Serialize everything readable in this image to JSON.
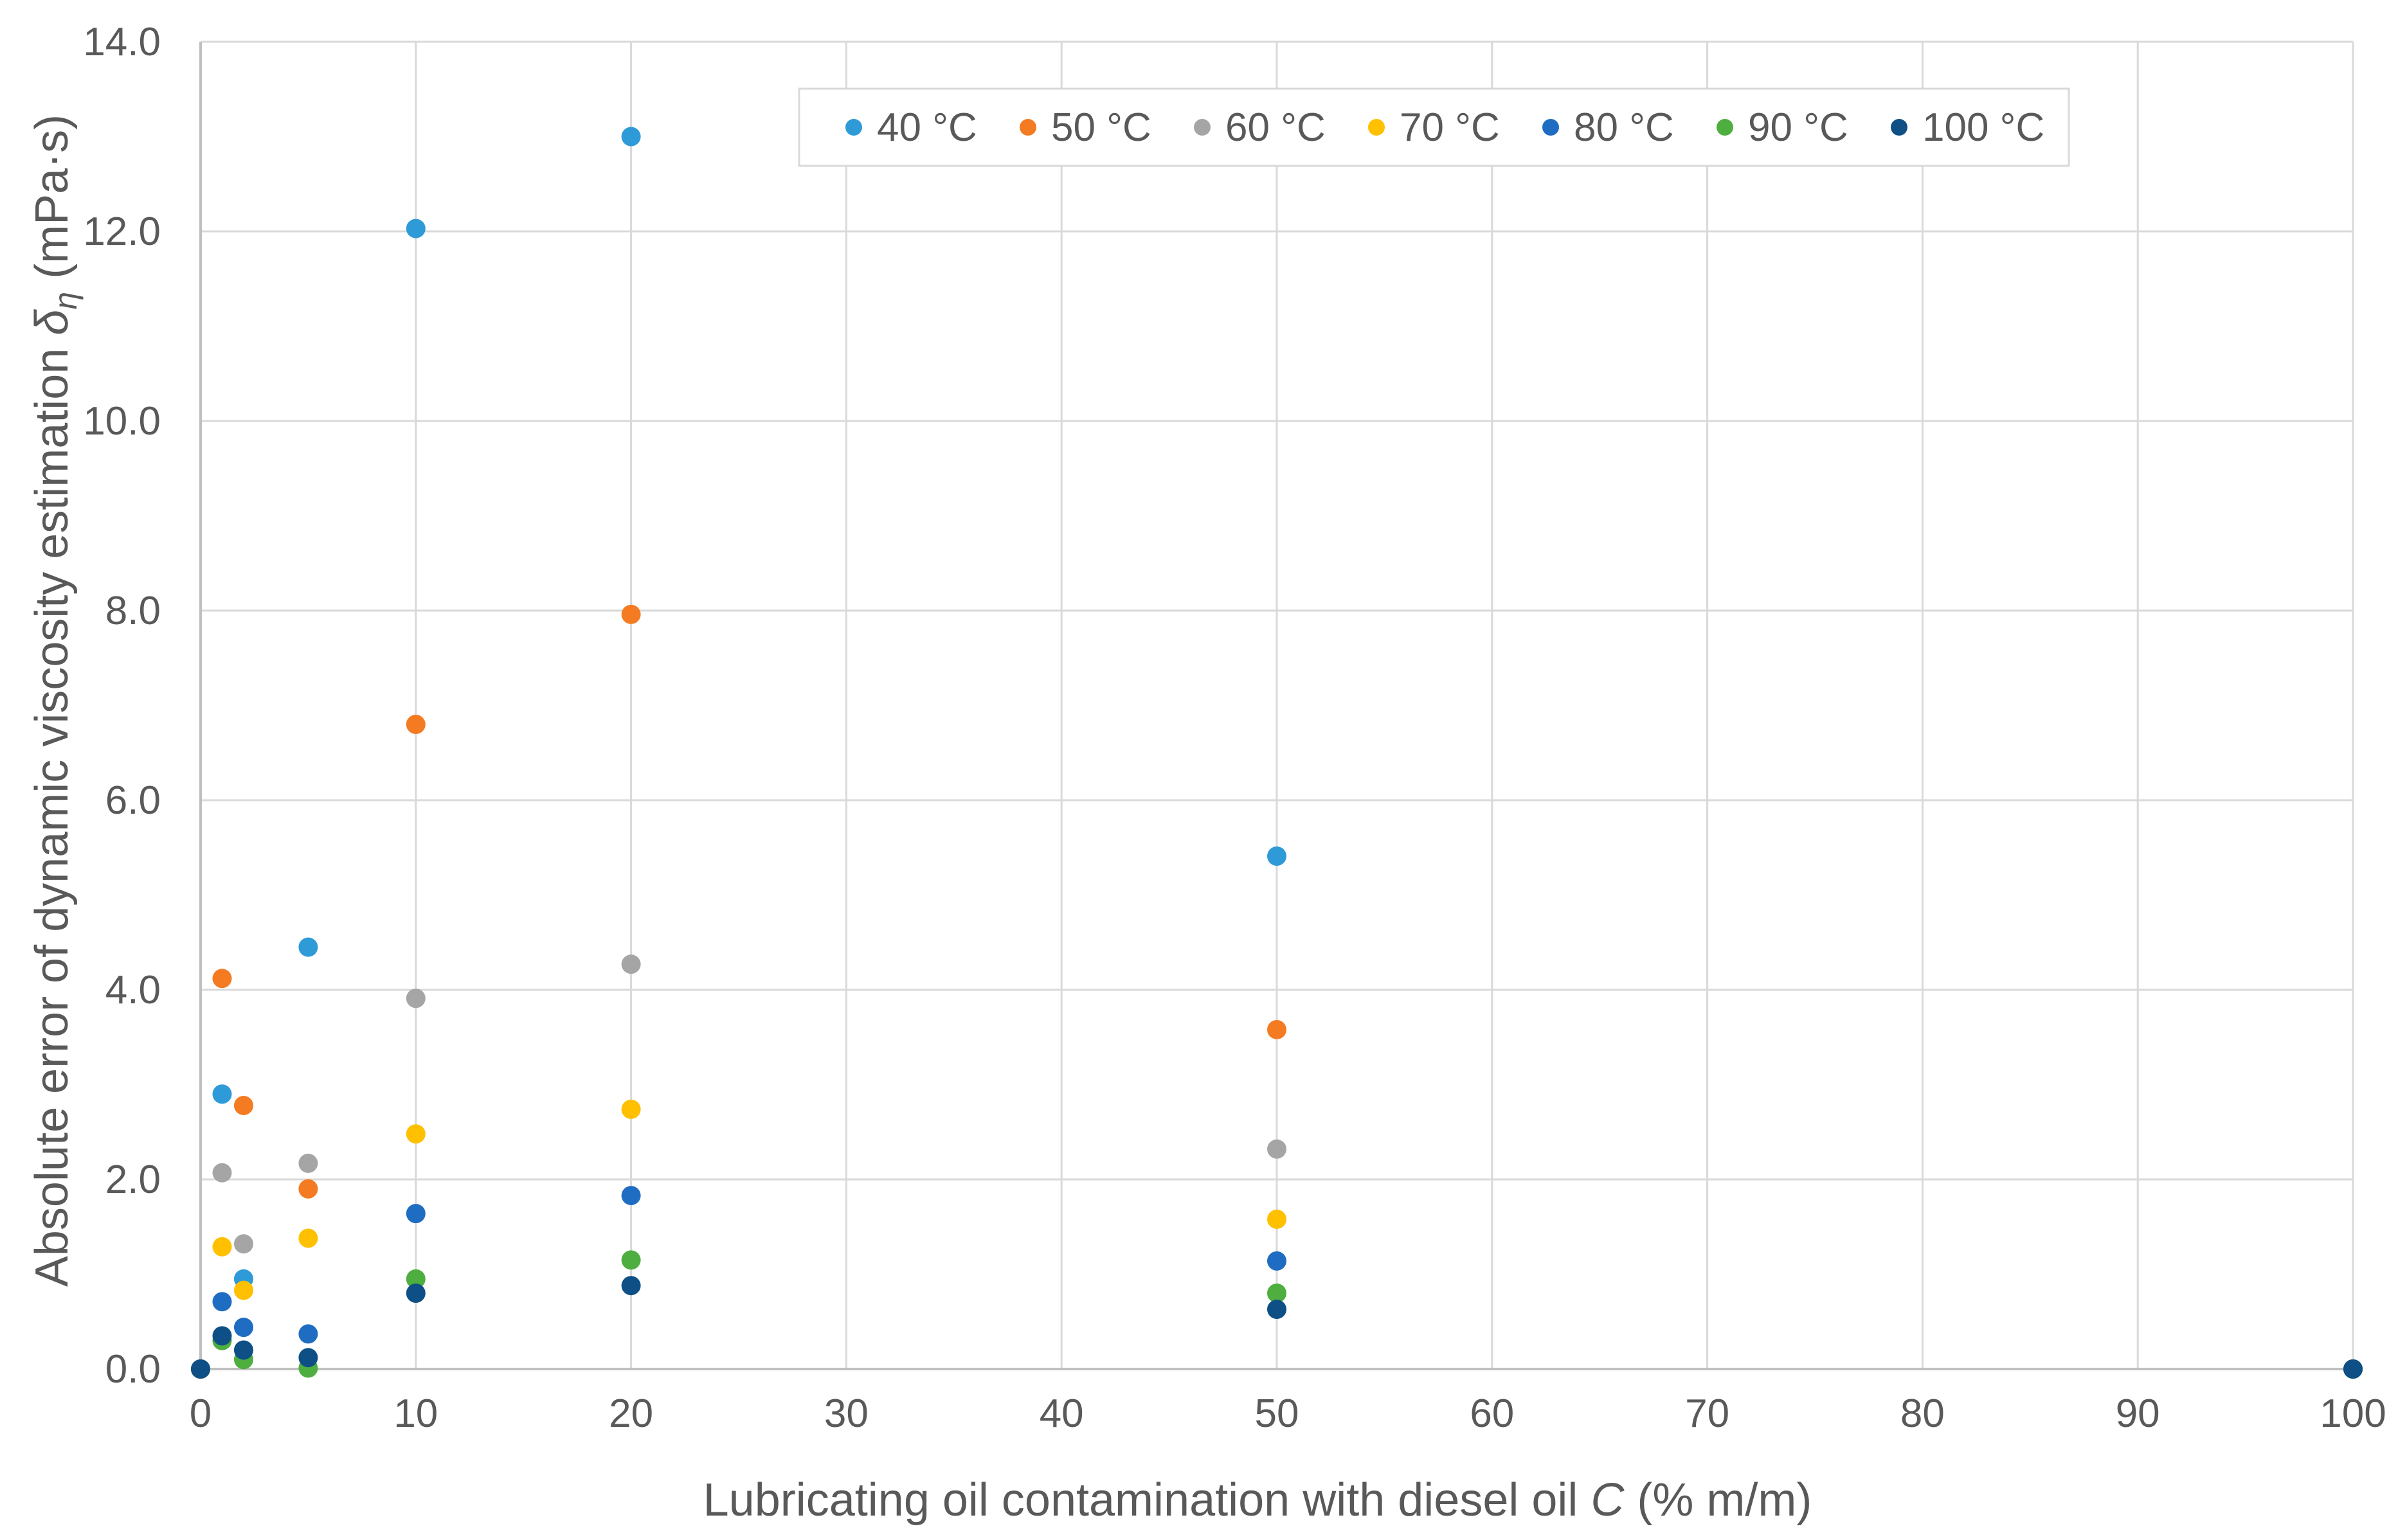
{
  "chart_data": {
    "type": "scatter",
    "title": "",
    "xlabel": {
      "prefix": "Lubricating oil contamination with diesel oil ",
      "var": "C",
      "suffix": " (% m/m)"
    },
    "ylabel": {
      "prefix": "Absolute error of dynamic viscosity estimation ",
      "var": "δ",
      "sub": "η",
      "suffix": " (mPa·s)"
    },
    "xlim": [
      0,
      100
    ],
    "ylim": [
      0,
      14
    ],
    "x_ticks": [
      0,
      10,
      20,
      30,
      40,
      50,
      60,
      70,
      80,
      90,
      100
    ],
    "x_tick_labels": [
      "0",
      "10",
      "20",
      "30",
      "40",
      "50",
      "60",
      "70",
      "80",
      "90",
      "100"
    ],
    "y_ticks": [
      0,
      2,
      4,
      6,
      8,
      10,
      12,
      14
    ],
    "y_tick_labels": [
      "0.0",
      "2.0",
      "4.0",
      "6.0",
      "8.0",
      "10.0",
      "12.0",
      "14.0"
    ],
    "grid": true,
    "legend_position": "top-center",
    "series": [
      {
        "name": "40 °C",
        "color": "#2e9ad8",
        "points": [
          [
            0,
            0
          ],
          [
            1,
            2.9
          ],
          [
            2,
            0.95
          ],
          [
            5,
            4.45
          ],
          [
            10,
            12.03
          ],
          [
            20,
            13.0
          ],
          [
            50,
            5.41
          ],
          [
            100,
            0
          ]
        ]
      },
      {
        "name": "50 °C",
        "color": "#f47b22",
        "points": [
          [
            0,
            0
          ],
          [
            1,
            4.12
          ],
          [
            2,
            2.78
          ],
          [
            5,
            1.9
          ],
          [
            10,
            6.8
          ],
          [
            20,
            7.96
          ],
          [
            50,
            3.58
          ],
          [
            100,
            0
          ]
        ]
      },
      {
        "name": "60 °C",
        "color": "#a5a5a5",
        "points": [
          [
            0,
            0
          ],
          [
            1,
            2.07
          ],
          [
            2,
            1.32
          ],
          [
            5,
            2.17
          ],
          [
            10,
            3.91
          ],
          [
            20,
            4.27
          ],
          [
            50,
            2.32
          ],
          [
            100,
            0
          ]
        ]
      },
      {
        "name": "70 °C",
        "color": "#ffc000",
        "points": [
          [
            0,
            0
          ],
          [
            1,
            1.29
          ],
          [
            2,
            0.83
          ],
          [
            5,
            1.38
          ],
          [
            10,
            2.48
          ],
          [
            20,
            2.74
          ],
          [
            50,
            1.58
          ],
          [
            100,
            0
          ]
        ]
      },
      {
        "name": "80 °C",
        "color": "#1f6dc2",
        "points": [
          [
            0,
            0
          ],
          [
            1,
            0.71
          ],
          [
            2,
            0.44
          ],
          [
            5,
            0.37
          ],
          [
            10,
            1.64
          ],
          [
            20,
            1.83
          ],
          [
            50,
            1.14
          ],
          [
            100,
            0
          ]
        ]
      },
      {
        "name": "90 °C",
        "color": "#4eae3f",
        "points": [
          [
            0,
            0
          ],
          [
            1,
            0.3
          ],
          [
            2,
            0.1
          ],
          [
            5,
            0.01
          ],
          [
            10,
            0.95
          ],
          [
            20,
            1.15
          ],
          [
            50,
            0.8
          ],
          [
            100,
            0
          ]
        ]
      },
      {
        "name": "100 °C",
        "color": "#0e4f86",
        "points": [
          [
            0,
            0
          ],
          [
            1,
            0.35
          ],
          [
            2,
            0.2
          ],
          [
            5,
            0.12
          ],
          [
            10,
            0.8
          ],
          [
            20,
            0.88
          ],
          [
            50,
            0.63
          ],
          [
            100,
            0
          ]
        ]
      }
    ]
  }
}
